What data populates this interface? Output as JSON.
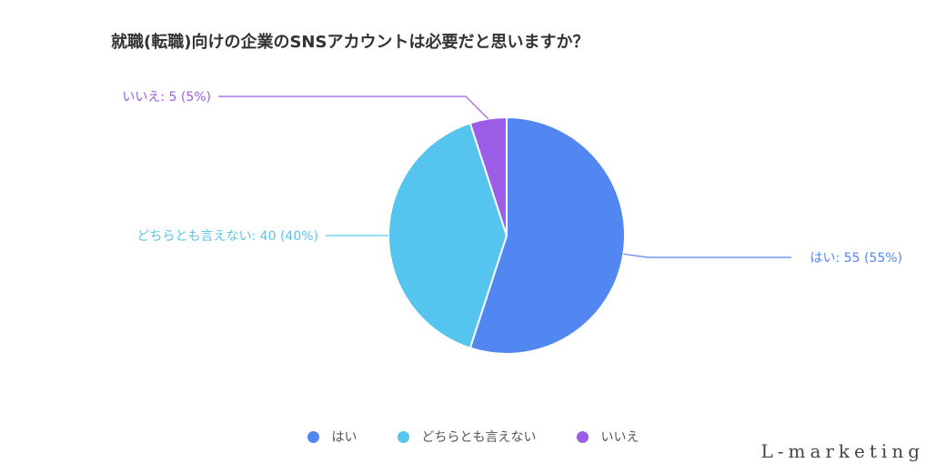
{
  "chart_data": {
    "type": "pie",
    "title": "就職(転職)向けの企業のSNSアカウントは必要だと思いますか？",
    "slices": [
      {
        "label": "はい",
        "value": 55,
        "percent": "55%",
        "color": "#5287f2",
        "data_label": "はい: 55 (55%)"
      },
      {
        "label": "どちらとも言えない",
        "value": 40,
        "percent": "40%",
        "color": "#55c5f0",
        "data_label": "どちらとも言えない: 40 (40%)"
      },
      {
        "label": "いいえ",
        "value": 5,
        "percent": "5%",
        "color": "#9b5ce6",
        "data_label": "いいえ: 5 (5%)"
      }
    ],
    "legend_position": "bottom"
  },
  "brand": "L-marketing"
}
